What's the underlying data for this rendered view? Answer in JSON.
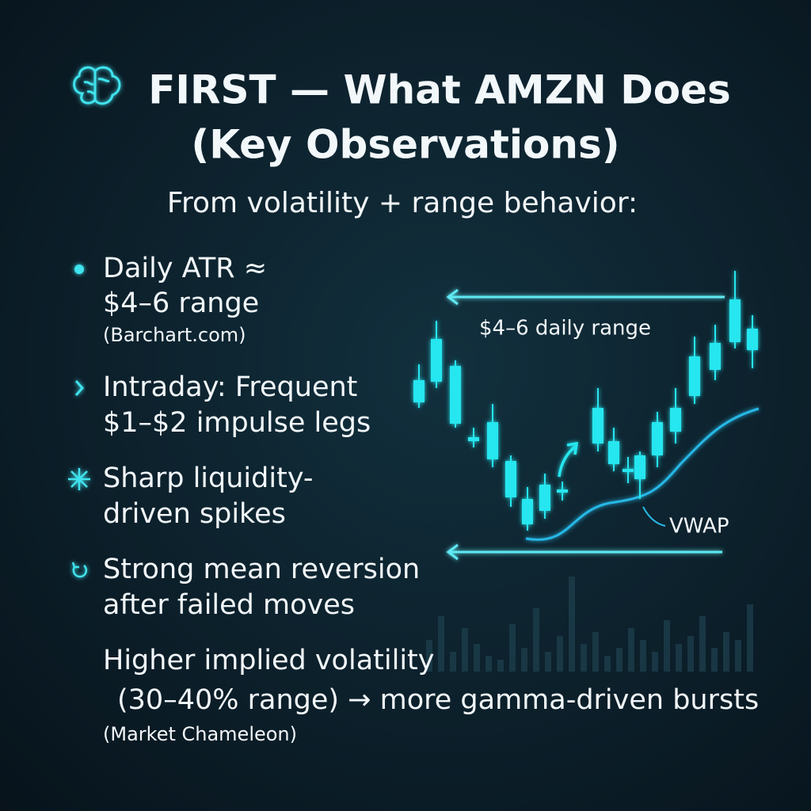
{
  "header": {
    "title_lines": [
      "FIRST — What AMZN Does",
      "(Key Observations)"
    ],
    "subtitle": "From volatility + range behavior:"
  },
  "items": [
    {
      "lines": [
        "Daily ATR ≈",
        "$4–6 range"
      ],
      "source": "(Barchart.com)"
    },
    {
      "lines": [
        "Intraday: Frequent",
        "$1–$2 impulse legs"
      ]
    },
    {
      "lines": [
        "Sharp liquidity-",
        "driven spikes"
      ]
    },
    {
      "lines": [
        "Strong mean reversion",
        "after failed moves"
      ]
    },
    {
      "lines": [
        "Higher implied volatility",
        "(30–40% range) → more gamma-driven bursts"
      ],
      "source": "(Market Chameleon)"
    }
  ],
  "illustration": {
    "range_label": "$4–6 daily range",
    "vwap_label": "VWAP"
  }
}
